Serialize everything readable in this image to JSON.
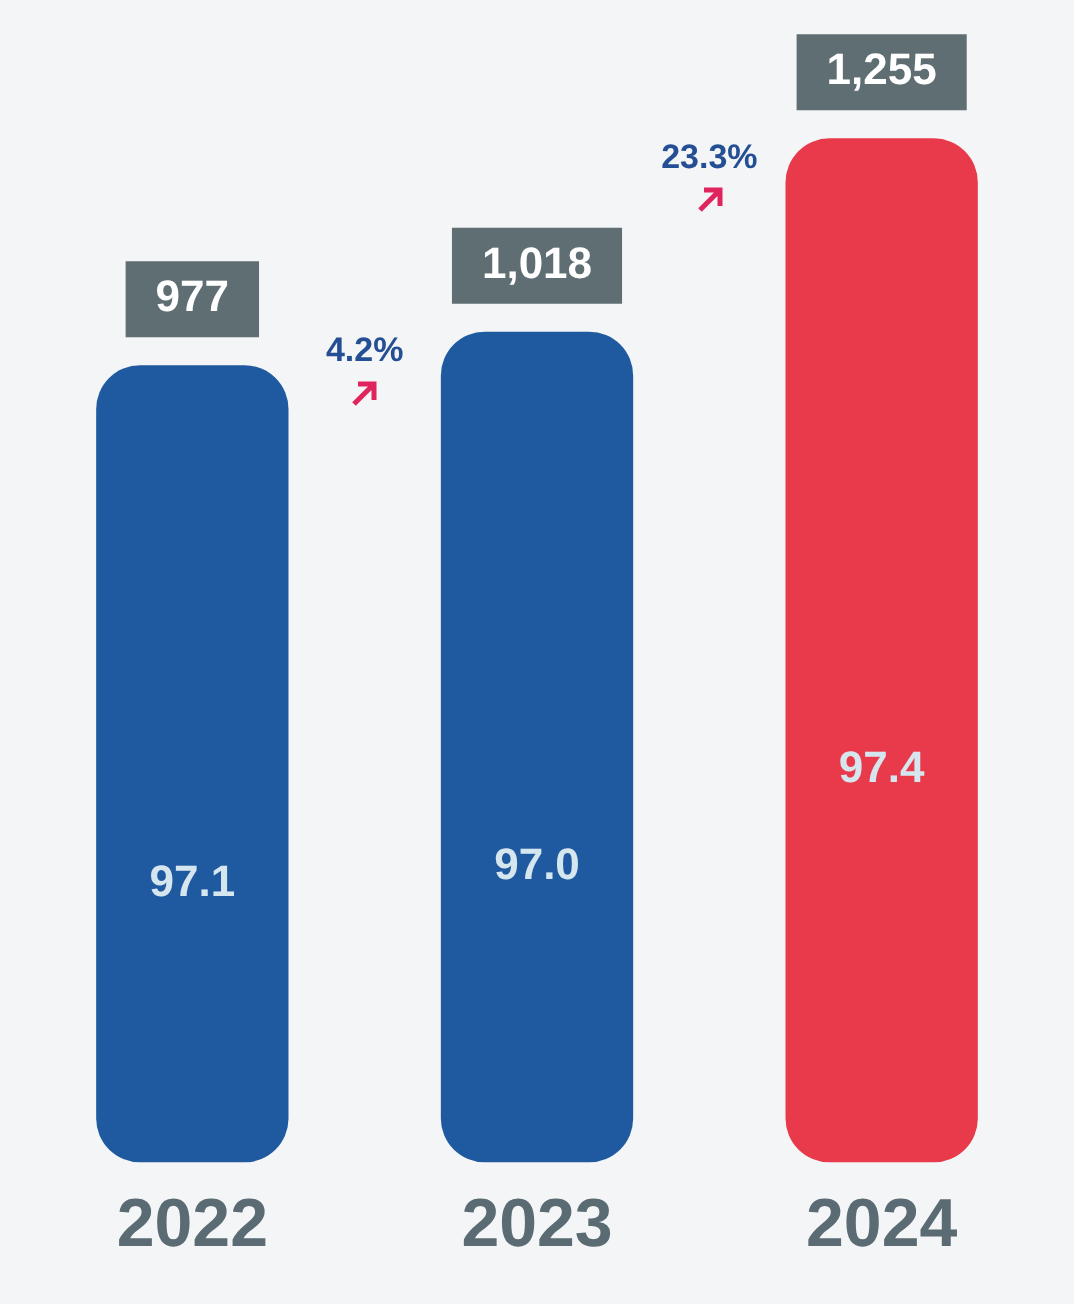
{
  "chart_data": {
    "type": "bar",
    "categories": [
      "2022",
      "2023",
      "2024"
    ],
    "values": [
      977,
      1018,
      1255
    ],
    "colors": [
      "#1f5aa0",
      "#1f5aa0",
      "#e83a4a"
    ],
    "value_labels": [
      "977",
      "1,018",
      "1,255"
    ],
    "tick_labels": "x",
    "grid": false,
    "legend": false,
    "annotations": [
      "97.1",
      "97.0",
      "97.4",
      "4.2%",
      "23.3%"
    ]
  }
}
